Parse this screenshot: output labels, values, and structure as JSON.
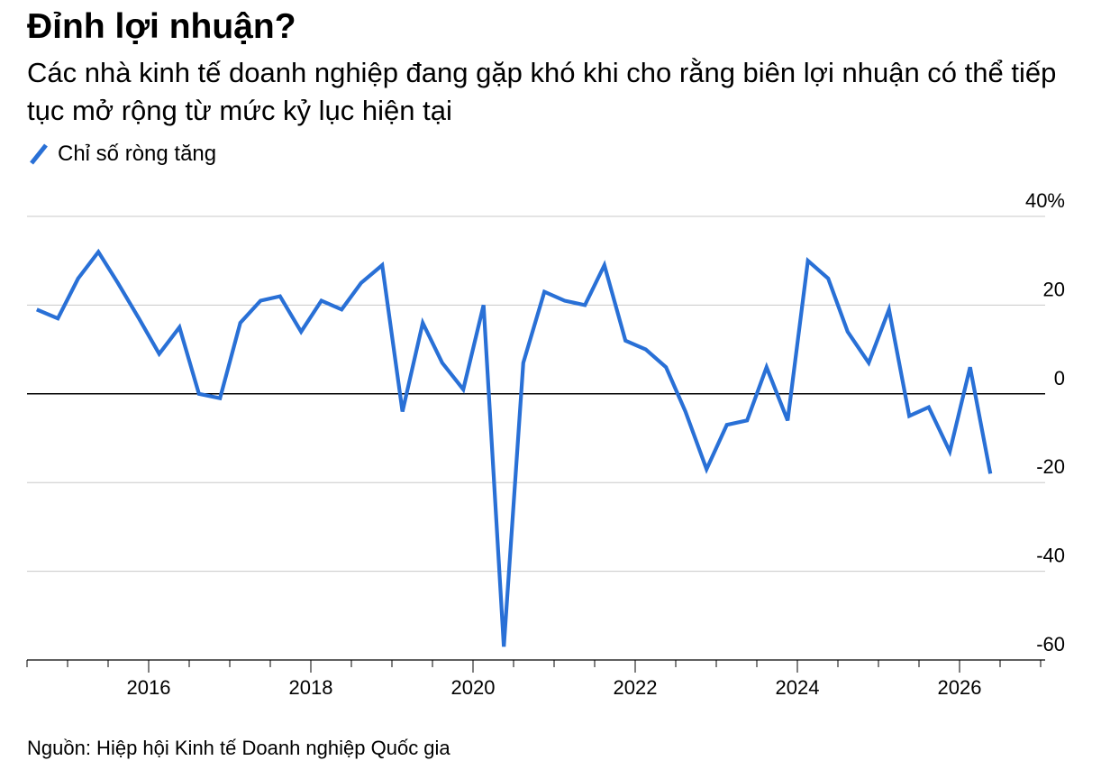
{
  "title": "Đỉnh lợi nhuận?",
  "subtitle": "Các nhà kinh tế doanh nghiệp đang gặp khó khi cho rằng biên lợi nhuận có thể tiếp tục mở rộng từ mức kỷ lục hiện tại",
  "source": "Nguồn: Hiệp hội Kinh tế Doanh nghiệp Quốc gia",
  "chart_data": {
    "type": "line",
    "title": "Đỉnh lợi nhuận?",
    "subtitle": "Các nhà kinh tế doanh nghiệp đang gặp khó khi cho rằng biên lợi nhuận có thể tiếp tục mở rộng từ mức kỷ lục hiện tại",
    "xlabel": "",
    "ylabel": "",
    "legend_position": "top-left",
    "grid": true,
    "x_range": [
      2014.5,
      2027.0
    ],
    "ylim": [
      -60,
      40
    ],
    "y_ticks": [
      {
        "value": 40,
        "label": "40%"
      },
      {
        "value": 20,
        "label": "20"
      },
      {
        "value": 0,
        "label": "0"
      },
      {
        "value": -20,
        "label": "-20"
      },
      {
        "value": -40,
        "label": "-40"
      },
      {
        "value": -60,
        "label": "-60"
      }
    ],
    "x_ticks": [
      {
        "value": 2016,
        "label": "2016"
      },
      {
        "value": 2018,
        "label": "2018"
      },
      {
        "value": 2020,
        "label": "2020"
      },
      {
        "value": 2022,
        "label": "2022"
      },
      {
        "value": 2024,
        "label": "2024"
      },
      {
        "value": 2026,
        "label": "2026"
      }
    ],
    "series": [
      {
        "name": "Chỉ số ròng tăng",
        "color": "#2970d6",
        "points": [
          {
            "x": 2014.62,
            "y": 19
          },
          {
            "x": 2014.88,
            "y": 17
          },
          {
            "x": 2015.13,
            "y": 26
          },
          {
            "x": 2015.38,
            "y": 32
          },
          {
            "x": 2015.62,
            "y": 25
          },
          {
            "x": 2015.88,
            "y": 17
          },
          {
            "x": 2016.13,
            "y": 9
          },
          {
            "x": 2016.38,
            "y": 15
          },
          {
            "x": 2016.62,
            "y": 0
          },
          {
            "x": 2016.88,
            "y": -1
          },
          {
            "x": 2017.13,
            "y": 16
          },
          {
            "x": 2017.38,
            "y": 21
          },
          {
            "x": 2017.62,
            "y": 22
          },
          {
            "x": 2017.88,
            "y": 14
          },
          {
            "x": 2018.13,
            "y": 21
          },
          {
            "x": 2018.38,
            "y": 19
          },
          {
            "x": 2018.62,
            "y": 25
          },
          {
            "x": 2018.88,
            "y": 29
          },
          {
            "x": 2019.13,
            "y": -4
          },
          {
            "x": 2019.38,
            "y": 16
          },
          {
            "x": 2019.62,
            "y": 7
          },
          {
            "x": 2019.88,
            "y": 1
          },
          {
            "x": 2020.13,
            "y": 20
          },
          {
            "x": 2020.38,
            "y": -57
          },
          {
            "x": 2020.62,
            "y": 7
          },
          {
            "x": 2020.88,
            "y": 23
          },
          {
            "x": 2021.13,
            "y": 21
          },
          {
            "x": 2021.38,
            "y": 20
          },
          {
            "x": 2021.62,
            "y": 29
          },
          {
            "x": 2021.88,
            "y": 12
          },
          {
            "x": 2022.13,
            "y": 10
          },
          {
            "x": 2022.38,
            "y": 6
          },
          {
            "x": 2022.62,
            "y": -4
          },
          {
            "x": 2022.88,
            "y": -17
          },
          {
            "x": 2023.13,
            "y": -7
          },
          {
            "x": 2023.38,
            "y": -6
          },
          {
            "x": 2023.62,
            "y": 6
          },
          {
            "x": 2023.88,
            "y": -6
          },
          {
            "x": 2024.13,
            "y": 30
          },
          {
            "x": 2024.38,
            "y": 26
          },
          {
            "x": 2024.62,
            "y": 14
          },
          {
            "x": 2024.88,
            "y": 7
          },
          {
            "x": 2025.13,
            "y": 19
          },
          {
            "x": 2025.38,
            "y": -5
          },
          {
            "x": 2025.62,
            "y": -3
          },
          {
            "x": 2025.88,
            "y": -13
          },
          {
            "x": 2026.13,
            "y": 6
          },
          {
            "x": 2026.38,
            "y": -18
          }
        ]
      }
    ]
  }
}
